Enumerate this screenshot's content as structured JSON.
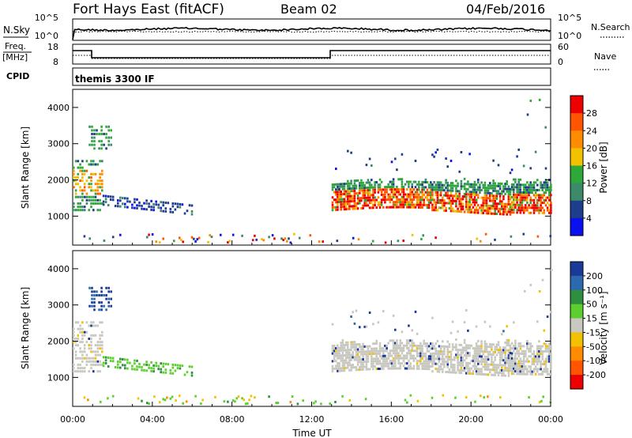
{
  "header": {
    "title": "Fort Hays East (fitACF)",
    "beam": "Beam 02",
    "date": "04/Feb/2016"
  },
  "noise_panel": {
    "left_label": "N.Sky",
    "right_label": "N.Search",
    "left_ticks": [
      "10^5",
      "10^0"
    ],
    "right_ticks": [
      "10^5",
      "10^0"
    ]
  },
  "freq_panel": {
    "left_label_1": "Freq.",
    "left_label_2": "[MHz]",
    "right_label": "Nave",
    "left_ticks": [
      "18",
      "8"
    ],
    "right_ticks": [
      "60",
      "0"
    ]
  },
  "cpid_panel": {
    "label": "CPID",
    "value": "themis 3300 IF"
  },
  "chart_data": [
    {
      "type": "heatmap",
      "ylabel": "Slant Range [km]",
      "xlabel": "",
      "y_ticks": [
        "4000",
        "3000",
        "2000",
        "1000"
      ],
      "y_tick_values": [
        4000,
        3000,
        2000,
        1000
      ],
      "ylim": [
        200,
        4500
      ],
      "colorbar": {
        "label": "Power [dB]",
        "ticks": [
          "28",
          "24",
          "20",
          "16",
          "12",
          "8",
          "4"
        ],
        "colors": [
          "#ee0000",
          "#ff5500",
          "#ff8c00",
          "#f2c100",
          "#2fa83a",
          "#3c8a6a",
          "#1e3d8c",
          "#0a10ee"
        ]
      }
    },
    {
      "type": "heatmap",
      "ylabel": "Slant Range [km]",
      "xlabel": "Time UT",
      "x_ticks": [
        "00:00",
        "04:00",
        "08:00",
        "12:00",
        "16:00",
        "20:00",
        "00:00"
      ],
      "y_ticks": [
        "4000",
        "3000",
        "2000",
        "1000"
      ],
      "y_tick_values": [
        4000,
        3000,
        2000,
        1000
      ],
      "ylim": [
        200,
        4500
      ],
      "colorbar": {
        "label": "Velocity [m s⁻¹]",
        "ticks": [
          "200",
          "100",
          "50",
          "15",
          "-15",
          "-50",
          "-100",
          "-200"
        ],
        "colors": [
          "#1a3a9a",
          "#2c6ab0",
          "#2f8f3f",
          "#5ccf2e",
          "#c8c8c0",
          "#f2c100",
          "#ff8c00",
          "#ff5500",
          "#ee0000"
        ]
      }
    }
  ]
}
